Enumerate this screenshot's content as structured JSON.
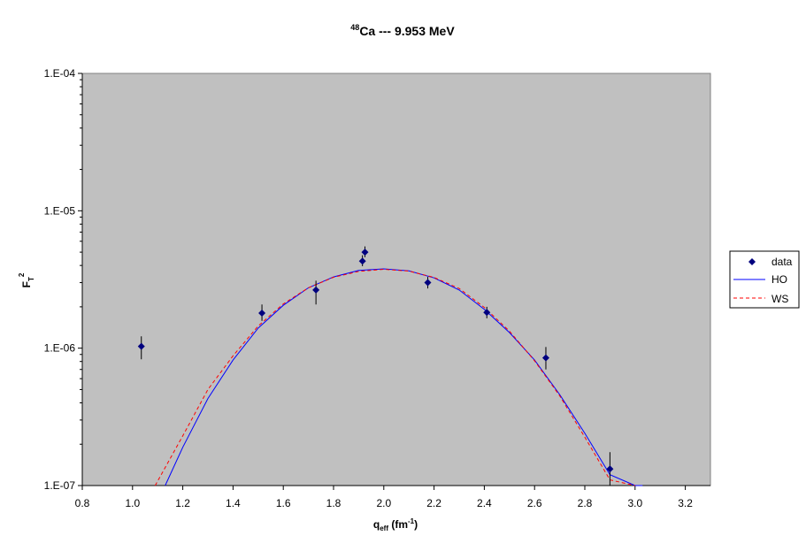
{
  "chart_data": {
    "type": "scatter",
    "title": {
      "sup": "48",
      "main": "Ca --- 9.953 MeV"
    },
    "xlabel": {
      "main": "q",
      "sub": "eff",
      "rest": " (fm",
      "sup": "-1",
      "close": ")"
    },
    "ylabel": {
      "main": "F",
      "sub": "T",
      "sup": "2"
    },
    "xlim": [
      0.8,
      3.3
    ],
    "ylim": [
      1e-07,
      0.0001
    ],
    "y_scale": "log",
    "x_ticks": [
      "0.8",
      "1.0",
      "1.2",
      "1.4",
      "1.6",
      "1.8",
      "2.0",
      "2.2",
      "2.4",
      "2.6",
      "2.8",
      "3.0",
      "3.2"
    ],
    "x_tick_values": [
      0.8,
      1.0,
      1.2,
      1.4,
      1.6,
      1.8,
      2.0,
      2.2,
      2.4,
      2.6,
      2.8,
      3.0,
      3.2
    ],
    "y_ticks": [
      "1.E-07",
      "1.E-06",
      "1.E-05",
      "1.E-04"
    ],
    "y_tick_values": [
      1e-07,
      1e-06,
      1e-05,
      0.0001
    ],
    "legend_position": "right",
    "plot_background": "#c0c0c0",
    "series": [
      {
        "name": "data",
        "kind": "points",
        "color": "#00007f",
        "points": [
          {
            "x": 1.035,
            "y": 1.03e-06,
            "err_lo": 8.3e-07,
            "err_hi": 1.22e-06
          },
          {
            "x": 1.515,
            "y": 1.8e-06,
            "err_lo": 1.58e-06,
            "err_hi": 2.08e-06
          },
          {
            "x": 1.73,
            "y": 2.65e-06,
            "err_lo": 2.08e-06,
            "err_hi": 3.1e-06
          },
          {
            "x": 1.915,
            "y": 4.3e-06,
            "err_lo": 3.95e-06,
            "err_hi": 4.75e-06
          },
          {
            "x": 1.925,
            "y": 5e-06,
            "err_lo": 4.6e-06,
            "err_hi": 5.5e-06
          },
          {
            "x": 2.175,
            "y": 3e-06,
            "err_lo": 2.72e-06,
            "err_hi": 3.3e-06
          },
          {
            "x": 2.41,
            "y": 1.82e-06,
            "err_lo": 1.65e-06,
            "err_hi": 2e-06
          },
          {
            "x": 2.645,
            "y": 8.5e-07,
            "err_lo": 7e-07,
            "err_hi": 1.02e-06
          },
          {
            "x": 2.9,
            "y": 1.32e-07,
            "err_lo": 1e-07,
            "err_hi": 1.75e-07
          }
        ]
      },
      {
        "name": "HO",
        "kind": "line",
        "color": "#0000ff",
        "dash": "solid",
        "x": [
          1.13,
          1.2,
          1.3,
          1.4,
          1.5,
          1.6,
          1.7,
          1.8,
          1.9,
          2.0,
          2.1,
          2.2,
          2.3,
          2.4,
          2.5,
          2.6,
          2.7,
          2.8,
          2.9,
          3.0,
          3.03
        ],
        "y": [
          1e-07,
          1.9e-07,
          4.3e-07,
          8.2e-07,
          1.4e-06,
          2.05e-06,
          2.75e-06,
          3.3e-06,
          3.68e-06,
          3.78e-06,
          3.65e-06,
          3.25e-06,
          2.65e-06,
          1.92e-06,
          1.3e-06,
          8.2e-07,
          4.6e-07,
          2.4e-07,
          1.2e-07,
          1e-07,
          1e-07
        ]
      },
      {
        "name": "WS",
        "kind": "line",
        "color": "#ff0000",
        "dash": "dashed",
        "x": [
          1.09,
          1.2,
          1.3,
          1.4,
          1.5,
          1.6,
          1.7,
          1.8,
          1.9,
          2.0,
          2.1,
          2.2,
          2.3,
          2.4,
          2.5,
          2.6,
          2.7,
          2.8,
          2.9,
          3.0
        ],
        "y": [
          1e-07,
          2.3e-07,
          5e-07,
          8.8e-07,
          1.45e-06,
          2.1e-06,
          2.75e-06,
          3.28e-06,
          3.62e-06,
          3.75e-06,
          3.64e-06,
          3.27e-06,
          2.72e-06,
          1.98e-06,
          1.33e-06,
          8.1e-07,
          4.5e-07,
          2.25e-07,
          1.1e-07,
          1e-07
        ]
      }
    ]
  }
}
